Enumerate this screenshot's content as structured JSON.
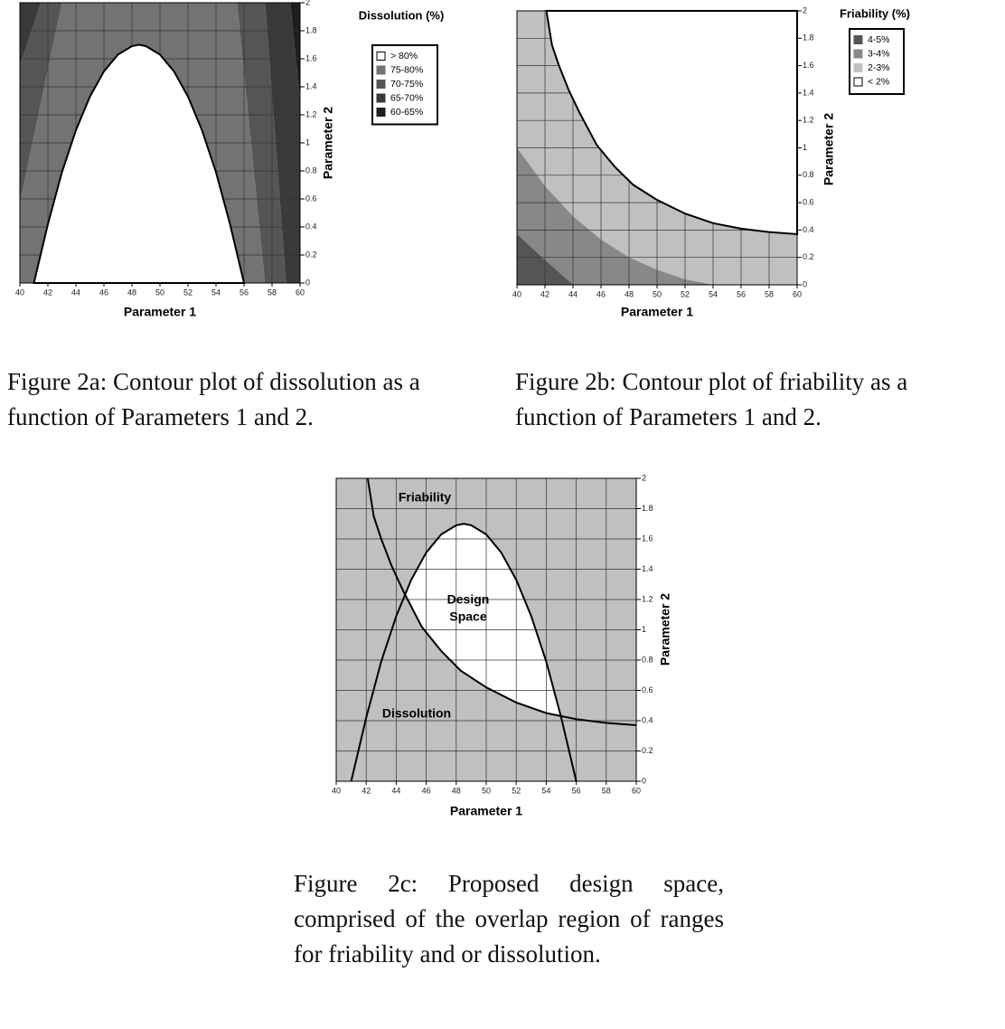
{
  "chart_data": [
    {
      "type": "contour",
      "title": "Dissolution (%)",
      "caption": "Figure 2a: Contour plot of dissolution as a function of Parameters 1 and 2.",
      "x_label": "Parameter 1",
      "y_label": "Parameter 2",
      "xlim": [
        40,
        60
      ],
      "ylim": [
        0,
        2
      ],
      "xticks": [
        40,
        42,
        44,
        46,
        48,
        50,
        52,
        54,
        56,
        58,
        60
      ],
      "yticks": [
        0,
        0.2,
        0.4,
        0.6,
        0.8,
        1,
        1.2,
        1.4,
        1.6,
        1.8,
        2
      ],
      "grid": true,
      "series": [
        {
          "name": "> 80%",
          "color": "#ffffff",
          "polygons": [
            {
              "x": [
                41,
                42,
                43,
                44,
                45,
                46,
                47,
                48,
                48.5,
                49,
                50,
                51,
                52,
                53,
                54,
                55,
                56
              ],
              "y": [
                0,
                0.42,
                0.79,
                1.09,
                1.33,
                1.51,
                1.63,
                1.69,
                1.7,
                1.69,
                1.63,
                1.51,
                1.33,
                1.09,
                0.79,
                0.42,
                0
              ]
            }
          ]
        },
        {
          "name": "75-80%",
          "color": "#737373",
          "polygons": [
            {
              "x": [
                40,
                57.5,
                55.5,
                43,
                40
              ],
              "y": [
                0,
                0,
                2,
                2,
                0.57
              ]
            }
          ]
        },
        {
          "name": "70-75%",
          "color": "#555555",
          "polygons": [
            {
              "x": [
                40,
                43,
                41.5,
                40
              ],
              "y": [
                0.57,
                2,
                2,
                1.55
              ]
            },
            {
              "x": [
                57.5,
                59,
                57.5,
                55.5
              ],
              "y": [
                0,
                0,
                2,
                2
              ]
            }
          ]
        },
        {
          "name": "65-70%",
          "color": "#3a3a3a",
          "polygons": [
            {
              "x": [
                40,
                41.5,
                40
              ],
              "y": [
                1.55,
                2,
                2
              ]
            },
            {
              "x": [
                59,
                60,
                60,
                59.3,
                57.5
              ],
              "y": [
                0,
                0,
                1.3,
                2,
                2
              ]
            }
          ]
        },
        {
          "name": "60-65%",
          "color": "#1e1e1e",
          "polygons": [
            {
              "x": [
                60,
                60,
                59.3
              ],
              "y": [
                1.3,
                2,
                2
              ]
            }
          ]
        }
      ]
    },
    {
      "type": "contour",
      "title": "Friability (%)",
      "caption": "Figure 2b: Contour plot of friability as a function of Parameters 1 and 2.",
      "x_label": "Parameter 1",
      "y_label": "Parameter 2",
      "xlim": [
        40,
        60
      ],
      "ylim": [
        0,
        2
      ],
      "xticks": [
        40,
        42,
        44,
        46,
        48,
        50,
        52,
        54,
        56,
        58,
        60
      ],
      "yticks": [
        0,
        0.2,
        0.4,
        0.6,
        0.8,
        1,
        1.2,
        1.4,
        1.6,
        1.8,
        2
      ],
      "grid": true,
      "series": [
        {
          "name": "4-5%",
          "color": "#555555",
          "polygons": [
            {
              "x": [
                40,
                44,
                42,
                40
              ],
              "y": [
                0,
                0,
                0.18,
                0.37
              ]
            }
          ]
        },
        {
          "name": "3-4%",
          "color": "#888888",
          "polygons": [
            {
              "x": [
                40,
                54,
                52,
                50,
                48,
                46,
                44,
                42,
                40
              ],
              "y": [
                0,
                0,
                0.04,
                0.11,
                0.2,
                0.33,
                0.5,
                0.72,
                1
              ]
            }
          ]
        },
        {
          "name": "2-3%",
          "color": "#c0c0c0",
          "polygons": [
            {
              "x": [
                40,
                60,
                60,
                58,
                56,
                54,
                52,
                50,
                48.3,
                47,
                45.7,
                44.5,
                43.7,
                43,
                42.5,
                42.1,
                40
              ],
              "y": [
                0,
                0,
                0.37,
                0.385,
                0.41,
                0.45,
                0.52,
                0.62,
                0.73,
                0.86,
                1.02,
                1.25,
                1.42,
                1.6,
                1.75,
                2,
                2
              ]
            }
          ]
        },
        {
          "name": "< 2%",
          "color": "#ffffff",
          "polygons": [
            {
              "x": [
                42.1,
                42.5,
                43,
                43.7,
                44.5,
                45.7,
                47,
                48.3,
                50,
                52,
                54,
                56,
                58,
                60,
                60
              ],
              "y": [
                2,
                1.75,
                1.6,
                1.42,
                1.25,
                1.02,
                0.86,
                0.73,
                0.62,
                0.52,
                0.45,
                0.41,
                0.385,
                0.37,
                2
              ]
            }
          ]
        }
      ]
    },
    {
      "type": "overlap",
      "caption": "Figure 2c: Proposed design space, comprised of the overlap region of ranges for friability and or dissolution.",
      "x_label": "Parameter 1",
      "y_label": "Parameter 2",
      "xlim": [
        40,
        60
      ],
      "ylim": [
        0,
        2
      ],
      "xticks": [
        40,
        42,
        44,
        46,
        48,
        50,
        52,
        54,
        56,
        58,
        60
      ],
      "yticks": [
        0,
        0.2,
        0.4,
        0.6,
        0.8,
        1,
        1.2,
        1.4,
        1.6,
        1.8,
        2
      ],
      "grid": true,
      "background": "#c0c0c0",
      "overlap_color": "#ffffff",
      "curves": [
        {
          "name": "Friability",
          "x": [
            42.1,
            42.5,
            43,
            43.7,
            44.5,
            45.7,
            47,
            48.3,
            50,
            52,
            54,
            56,
            58,
            60
          ],
          "y": [
            2,
            1.75,
            1.6,
            1.42,
            1.25,
            1.02,
            0.86,
            0.73,
            0.62,
            0.52,
            0.45,
            0.41,
            0.385,
            0.37
          ]
        },
        {
          "name": "Dissolution",
          "x": [
            41,
            42,
            43,
            44,
            45,
            46,
            47,
            48,
            48.5,
            49,
            50,
            51,
            52,
            53,
            54,
            55,
            56
          ],
          "y": [
            0,
            0.42,
            0.79,
            1.09,
            1.33,
            1.51,
            1.63,
            1.69,
            1.7,
            1.69,
            1.63,
            1.51,
            1.33,
            1.09,
            0.79,
            0.42,
            0
          ]
        }
      ],
      "annotation": [
        "Design",
        "Space"
      ]
    }
  ]
}
